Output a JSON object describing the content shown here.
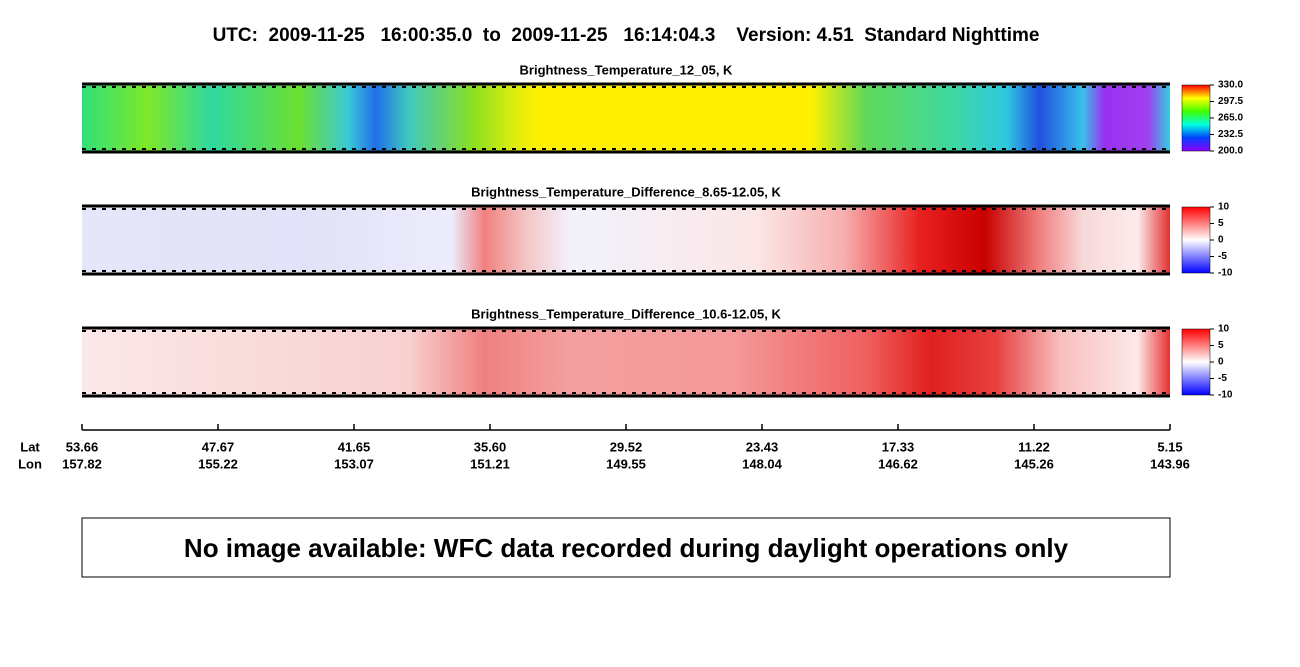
{
  "header": {
    "title": "UTC:  2009-11-25   16:00:35.0  to  2009-11-25   16:14:04.3    Version: 4.51  Standard Nighttime"
  },
  "panels": [
    {
      "title": "Brightness_Temperature_12_05, K",
      "colorbar_ticks": [
        "330.0",
        "297.5",
        "265.0",
        "232.5",
        "200.0"
      ]
    },
    {
      "title": "Brightness_Temperature_Difference_8.65-12.05, K",
      "colorbar_ticks": [
        "10",
        "5",
        "0",
        "-5",
        "-10"
      ]
    },
    {
      "title": "Brightness_Temperature_Difference_10.6-12.05, K",
      "colorbar_ticks": [
        "10",
        "5",
        "0",
        "-5",
        "-10"
      ]
    }
  ],
  "axis": {
    "lat_label": "Lat",
    "lon_label": "Lon",
    "lat": [
      "53.66",
      "47.67",
      "41.65",
      "35.60",
      "29.52",
      "23.43",
      "17.33",
      "11.22",
      "5.15"
    ],
    "lon": [
      "157.82",
      "155.22",
      "153.07",
      "151.21",
      "149.55",
      "148.04",
      "146.62",
      "145.26",
      "143.96"
    ]
  },
  "message": "No image available: WFC data recorded during daylight operations only"
}
